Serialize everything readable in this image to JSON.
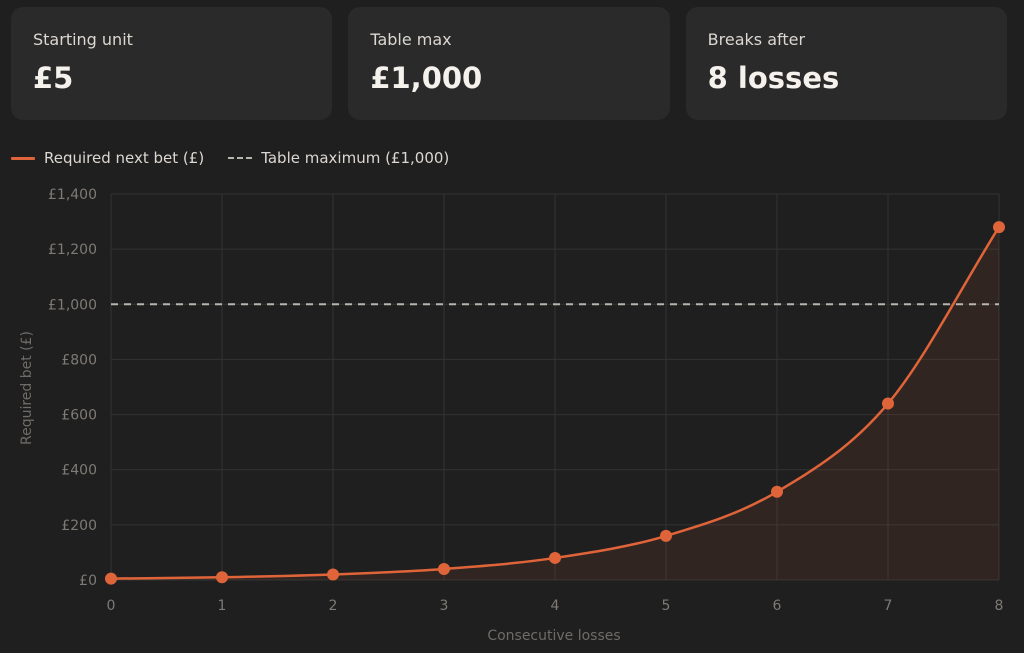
{
  "cards": [
    {
      "label": "Starting unit",
      "value": "£5"
    },
    {
      "label": "Table max",
      "value": "£1,000"
    },
    {
      "label": "Breaks after",
      "value": "8 losses"
    }
  ],
  "legend": {
    "series": "Required next bet (£)",
    "threshold": "Table maximum (£1,000)"
  },
  "colors": {
    "series": "#e06439",
    "threshold": "#b8b4ae",
    "card_bg": "#2a2a2a",
    "page_bg": "#1f1f1f"
  },
  "chart_data": {
    "type": "line",
    "title": "",
    "xlabel": "Consecutive losses",
    "ylabel": "Required bet (£)",
    "x": [
      0,
      1,
      2,
      3,
      4,
      5,
      6,
      7,
      8
    ],
    "x_ticks": [
      "0",
      "1",
      "2",
      "3",
      "4",
      "5",
      "6",
      "7",
      "8"
    ],
    "xlim": [
      0,
      8
    ],
    "ylim": [
      0,
      1400
    ],
    "y_ticks": [
      0,
      200,
      400,
      600,
      800,
      1000,
      1200,
      1400
    ],
    "y_tick_labels": [
      "£0",
      "£200",
      "£400",
      "£600",
      "£800",
      "£1,000",
      "£1,200",
      "£1,400"
    ],
    "series": [
      {
        "name": "Required next bet (£)",
        "values": [
          5,
          10,
          20,
          40,
          80,
          160,
          320,
          640,
          1280
        ],
        "fill": true
      }
    ],
    "reference_lines": [
      {
        "name": "Table maximum (£1,000)",
        "y": 1000,
        "style": "dashed"
      }
    ],
    "grid": true,
    "legend_position": "top-left"
  }
}
